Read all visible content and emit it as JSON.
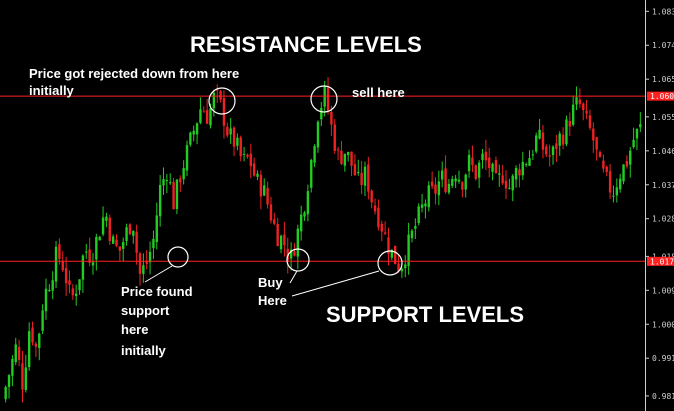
{
  "chart_data": {
    "type": "candlestick",
    "title": "",
    "colors": {
      "bull": "#22cc22",
      "bear": "#ee2222",
      "level_line": "#ff2020",
      "background": "#000000",
      "text": "#ffffff",
      "axis": "#cfcfcf"
    },
    "ylim": [
      0.977,
      1.086
    ],
    "y_ticks": [
      "1.083",
      "1.074",
      "1.065",
      "1.055",
      "1.046",
      "1.037",
      "1.028",
      "1.018",
      "1.009",
      "1.000",
      "0.991",
      "0.981"
    ],
    "resistance_level": {
      "value": 1.0605,
      "tag_label": "1.060"
    },
    "support_level": {
      "value": 1.0167,
      "tag_label": "1.017"
    },
    "closes": [
      0.98,
      0.987,
      0.994,
      0.984,
      1.0,
      0.993,
      1.007,
      1.012,
      1.019,
      1.015,
      1.006,
      1.011,
      1.02,
      1.018,
      1.024,
      1.03,
      1.022,
      1.019,
      1.024,
      1.028,
      1.013,
      1.016,
      1.022,
      1.036,
      1.041,
      1.032,
      1.04,
      1.046,
      1.052,
      1.058,
      1.055,
      1.061,
      1.057,
      1.05,
      1.048,
      1.043,
      1.044,
      1.038,
      1.036,
      1.03,
      1.024,
      1.022,
      1.017,
      1.024,
      1.032,
      1.043,
      1.056,
      1.061,
      1.052,
      1.044,
      1.046,
      1.042,
      1.037,
      1.04,
      1.032,
      1.028,
      1.022,
      1.018,
      1.015,
      1.02,
      1.025,
      1.03,
      1.034,
      1.035,
      1.039,
      1.037,
      1.041,
      1.038,
      1.043,
      1.04,
      1.044,
      1.042,
      1.037,
      1.04,
      1.036,
      1.041,
      1.043,
      1.045,
      1.05,
      1.046,
      1.044,
      1.049,
      1.051,
      1.056,
      1.059,
      1.054,
      1.05,
      1.042,
      1.038,
      1.035,
      1.04,
      1.043,
      1.049,
      1.052
    ],
    "annotations": {
      "top_title": "RESISTANCE LEVELS",
      "bottom_title": "SUPPORT LEVELS",
      "rejected_line1": "Price got rejected down from here",
      "rejected_line2": "initially",
      "sell": "sell here",
      "buy_line1": "Buy",
      "buy_line2": "Here",
      "support_line1": "Price found",
      "support_line2": "support",
      "support_line3": "here",
      "support_line4": "initially"
    }
  }
}
